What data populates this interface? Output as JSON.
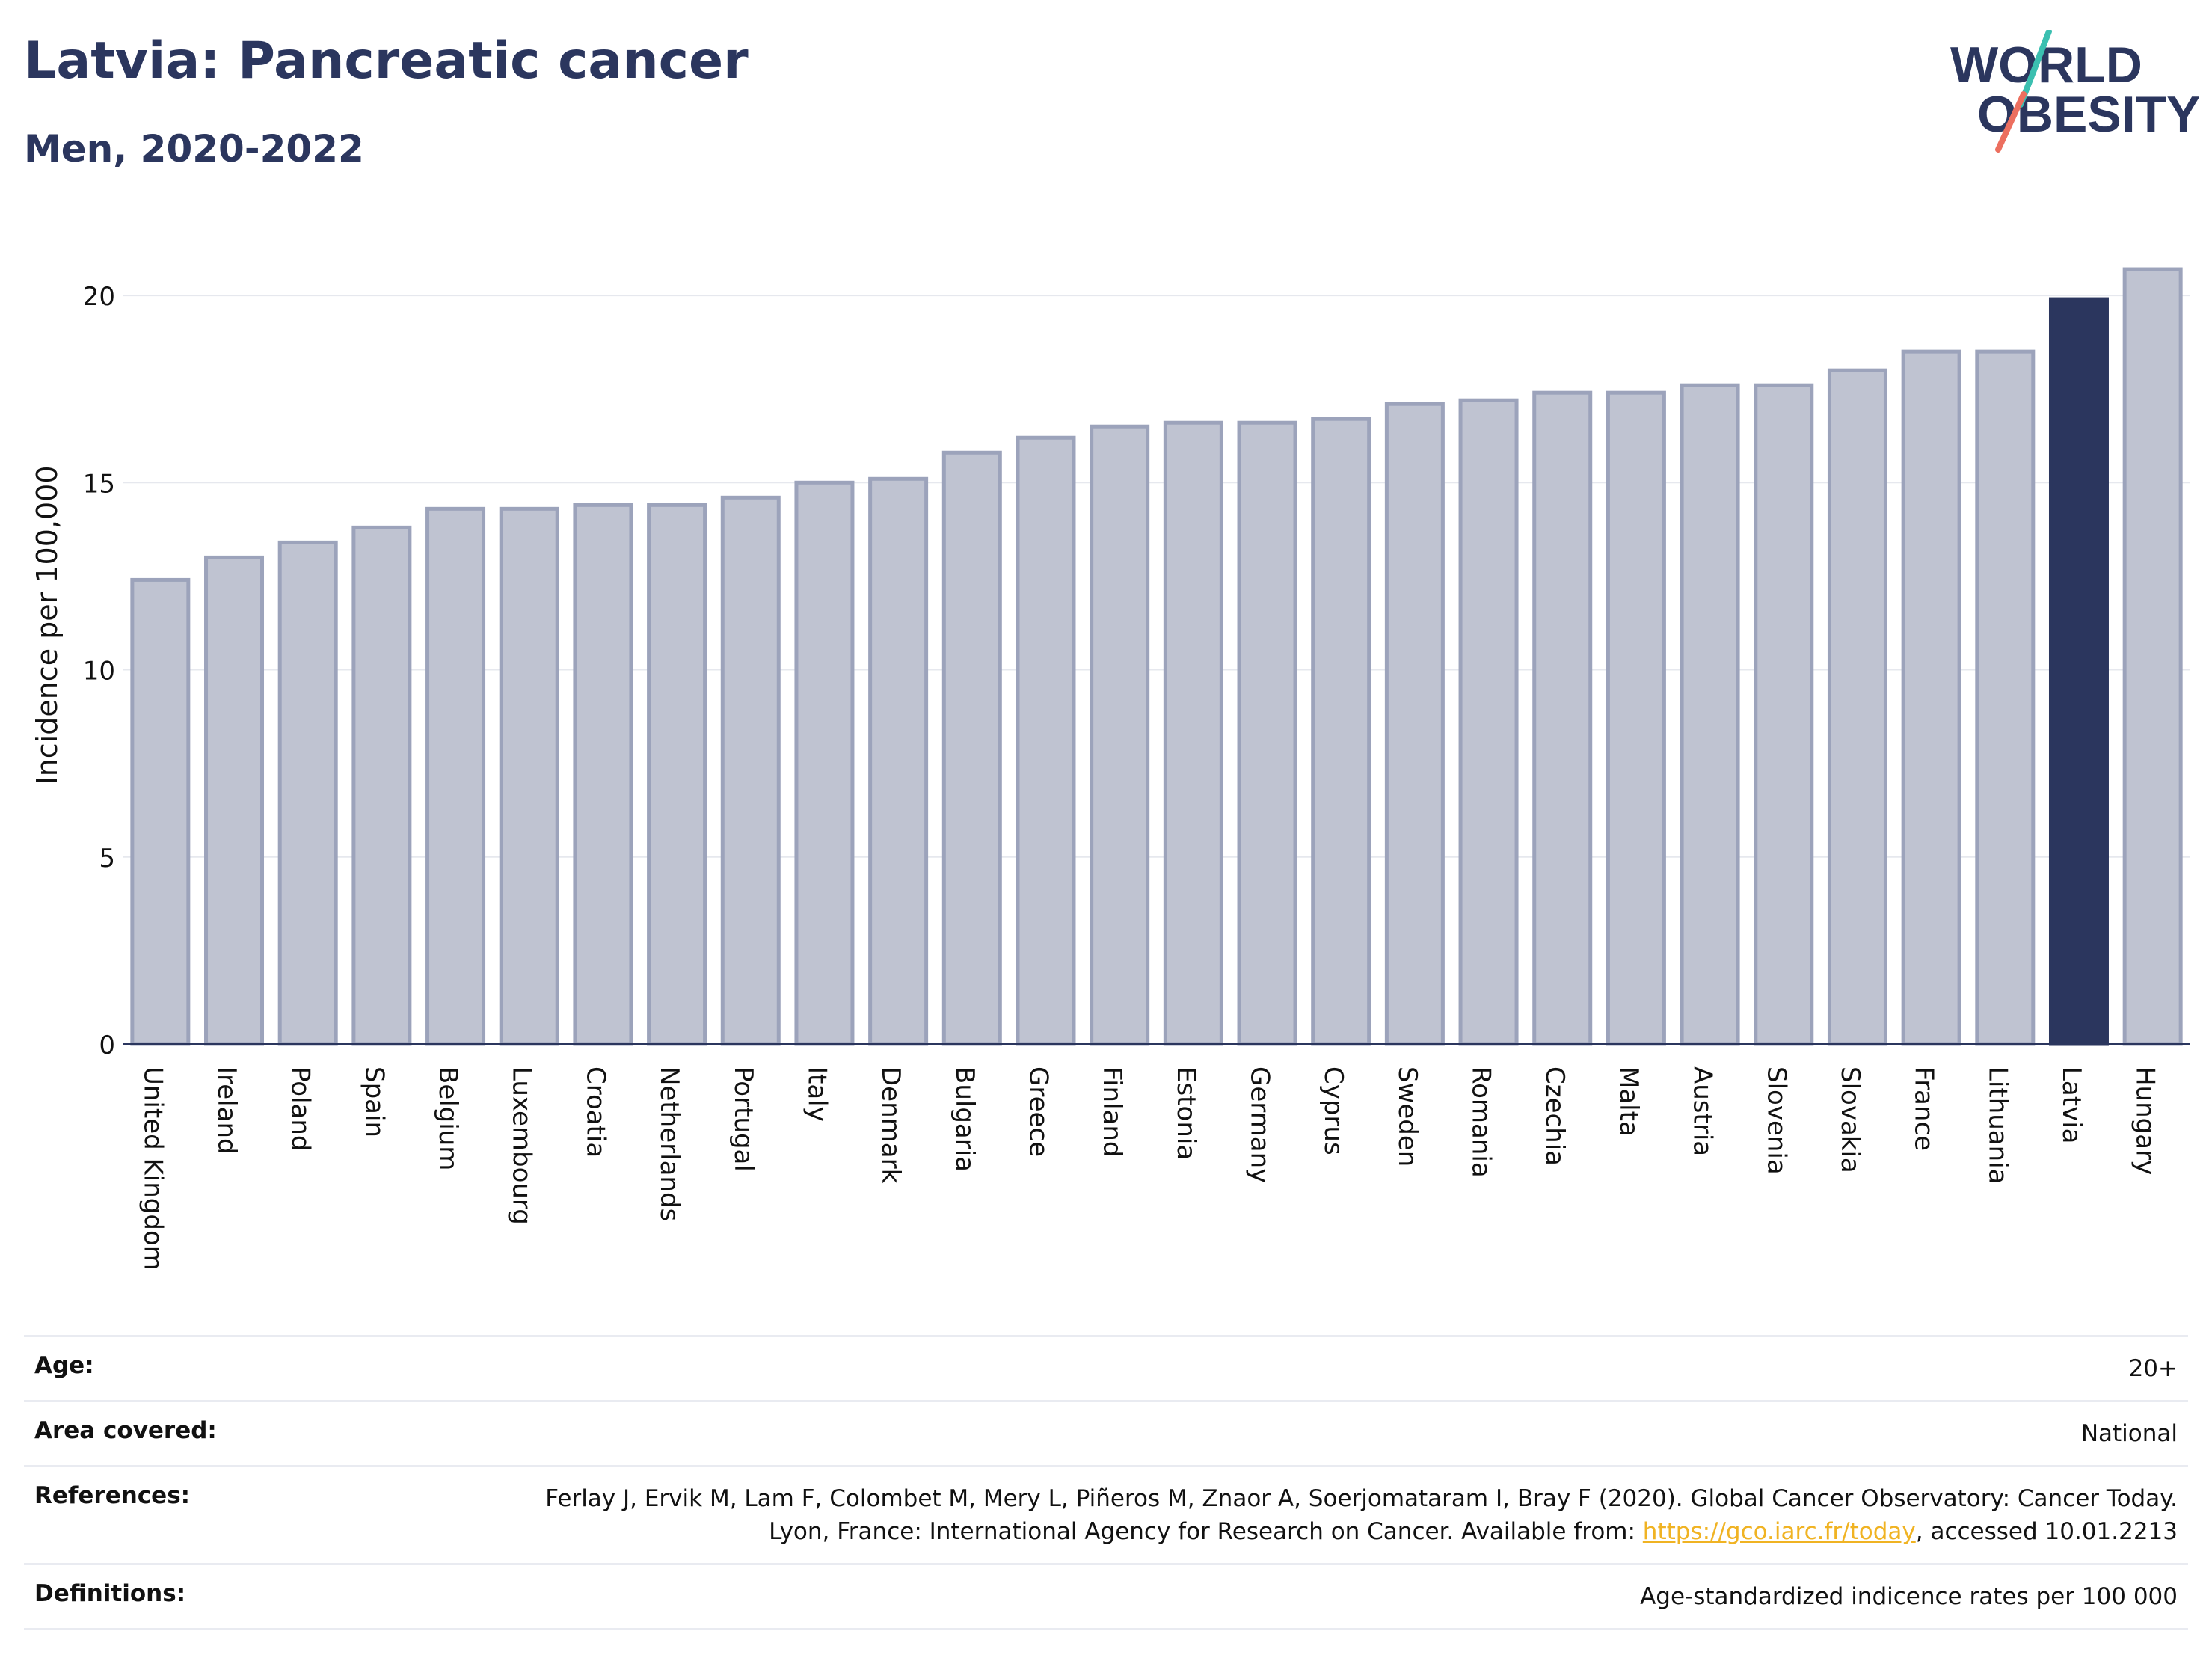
{
  "header": {
    "title": "Latvia: Pancreatic cancer",
    "subtitle": "Men, 2020-2022"
  },
  "logo": {
    "line1": "WORLD",
    "line2": "OBESITY"
  },
  "chart_data": {
    "type": "bar",
    "categories": [
      "United Kingdom",
      "Ireland",
      "Poland",
      "Spain",
      "Belgium",
      "Luxembourg",
      "Croatia",
      "Netherlands",
      "Portugal",
      "Italy",
      "Denmark",
      "Bulgaria",
      "Greece",
      "Finland",
      "Estonia",
      "Germany",
      "Cyprus",
      "Sweden",
      "Romania",
      "Czechia",
      "Malta",
      "Austria",
      "Slovenia",
      "Slovakia",
      "France",
      "Lithuania",
      "Latvia",
      "Hungary"
    ],
    "values": [
      12.4,
      13.0,
      13.4,
      13.8,
      14.3,
      14.3,
      14.4,
      14.4,
      14.6,
      15.0,
      15.1,
      15.8,
      16.2,
      16.5,
      16.6,
      16.6,
      16.7,
      17.1,
      17.2,
      17.4,
      17.4,
      17.6,
      17.6,
      18.0,
      18.5,
      18.5,
      19.9,
      20.7
    ],
    "highlight": "Latvia",
    "ylabel": "Incidence per 100,000",
    "xlabel": "",
    "ylim": [
      0,
      21.5
    ],
    "yticks": [
      0,
      5,
      10,
      15,
      20
    ],
    "grid": true,
    "colors": {
      "bar": "#bfc3d1",
      "bar_edge": "#9ca3bb",
      "highlight": "#2b365e",
      "grid": "#e6e8ee",
      "axis": "#2b365e"
    }
  },
  "meta": {
    "age": {
      "label": "Age:",
      "value": "20+"
    },
    "area": {
      "label": "Area covered:",
      "value": "National"
    },
    "references": {
      "label": "References:",
      "text_before": "Ferlay J, Ervik M, Lam F, Colombet M, Mery L, Piñeros M, Znaor A, Soerjomataram I, Bray F (2020). Global Cancer Observatory: Cancer Today. Lyon, France: International Agency for Research on Cancer. Available from: ",
      "link": "https://gco.iarc.fr/today",
      "text_after": ", accessed 10.01.2213"
    },
    "definitions": {
      "label": "Definitions:",
      "value": "Age-standardized indicence rates per 100 000"
    }
  }
}
